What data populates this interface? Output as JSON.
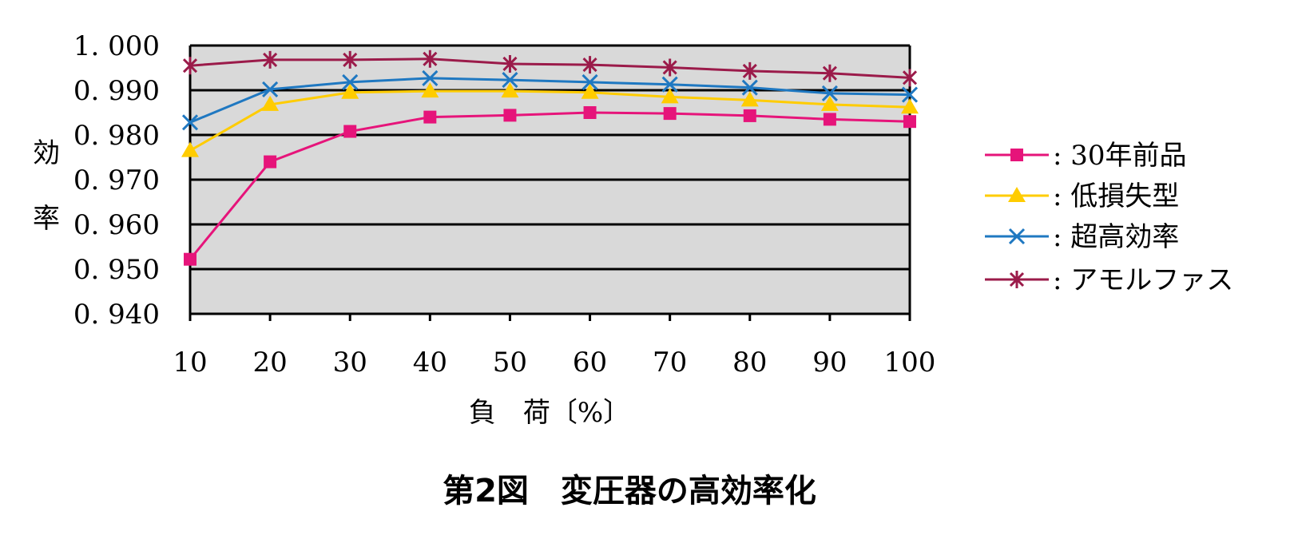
{
  "chart_data": {
    "type": "line",
    "title": "第2図　変圧器の高効率化",
    "xlabel": "負　荷〔%〕",
    "ylabel": "効率",
    "x": [
      10,
      20,
      30,
      40,
      50,
      60,
      70,
      80,
      90,
      100
    ],
    "x_tick_labels": [
      "10",
      "20",
      "30",
      "40",
      "50",
      "60",
      "70",
      "80",
      "90",
      "100"
    ],
    "y_tick_labels": [
      "1. 000",
      "0. 990",
      "0. 980",
      "0. 970",
      "0. 960",
      "0. 950",
      "0. 940"
    ],
    "ylim": [
      0.94,
      1.0
    ],
    "y_ticks": [
      1.0,
      0.99,
      0.98,
      0.97,
      0.96,
      0.95,
      0.94
    ],
    "grid": true,
    "plot_background": "#d9d9d9",
    "legend_position": "right",
    "series": [
      {
        "name": ": 30年前品",
        "color": "#e6147a",
        "marker": "square",
        "values": [
          0.9522,
          0.974,
          0.9808,
          0.984,
          0.9844,
          0.985,
          0.9848,
          0.9843,
          0.9835,
          0.983
        ]
      },
      {
        "name": ": 低損失型",
        "color": "#ffcc00",
        "marker": "triangle",
        "values": [
          0.9765,
          0.9868,
          0.9895,
          0.9898,
          0.9898,
          0.9895,
          0.9885,
          0.9878,
          0.9868,
          0.9862
        ]
      },
      {
        "name": ": 超高効率",
        "color": "#1f78c1",
        "marker": "x",
        "values": [
          0.9828,
          0.9902,
          0.9918,
          0.9927,
          0.9923,
          0.9918,
          0.9913,
          0.9906,
          0.9893,
          0.989
        ]
      },
      {
        "name": ": アモルファス",
        "color": "#9b1b4a",
        "marker": "asterisk",
        "values": [
          0.9955,
          0.9968,
          0.9968,
          0.997,
          0.9959,
          0.9957,
          0.9951,
          0.9943,
          0.9938,
          0.9928
        ]
      }
    ]
  }
}
